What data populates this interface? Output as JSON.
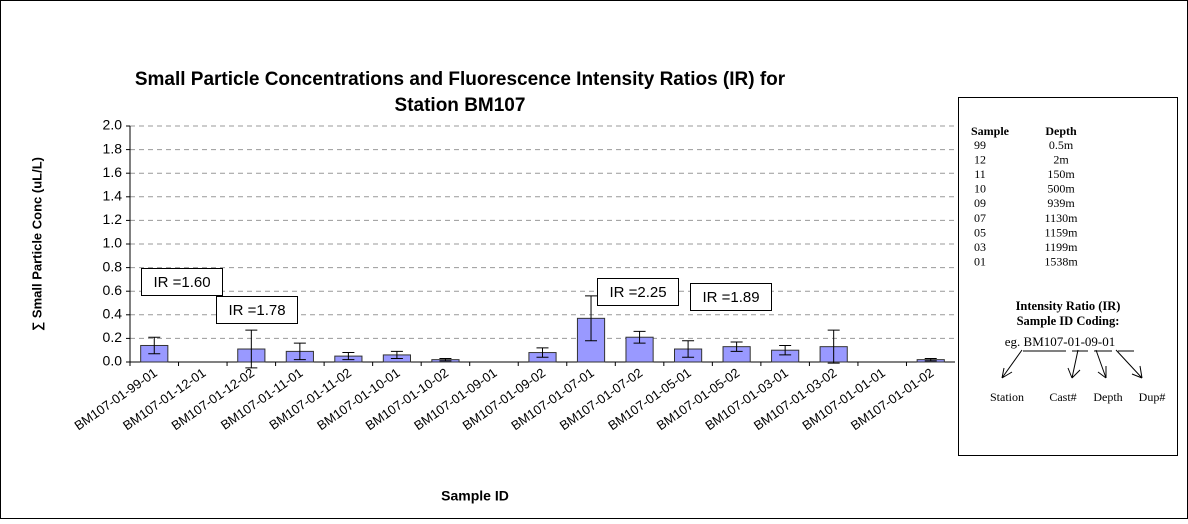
{
  "chart_data": {
    "type": "bar",
    "title": [
      "Small Particle Concentrations and Fluorescence Intensity Ratios (IR) for",
      "Station BM107"
    ],
    "xlabel": "Sample ID",
    "ylabel": "∑ Small Particle Conc  (uL/L)",
    "categories": [
      "BM107-01-99-01",
      "BM107-01-12-01",
      "BM107-01-12-02",
      "BM107-01-11-01",
      "BM107-01-11-02",
      "BM107-01-10-01",
      "BM107-01-10-02",
      "BM107-01-09-01",
      "BM107-01-09-02",
      "BM107-01-07-01",
      "BM107-01-07-02",
      "BM107-01-05-01",
      "BM107-01-05-02",
      "BM107-01-03-01",
      "BM107-01-03-02",
      "BM107-01-01-01",
      "BM107-01-01-02"
    ],
    "values": [
      0.14,
      0,
      0.11,
      0.09,
      0.05,
      0.06,
      0.02,
      0,
      0.08,
      0.37,
      0.21,
      0.11,
      0.13,
      0.1,
      0.13,
      0,
      0.02
    ],
    "errors": [
      0.07,
      0,
      0.16,
      0.07,
      0.03,
      0.03,
      0.01,
      0,
      0.04,
      0.19,
      0.05,
      0.07,
      0.04,
      0.04,
      0.14,
      0,
      0.01
    ],
    "color": "#9999ff",
    "ylim": [
      0,
      2
    ],
    "yticks": [
      {
        "value": 0,
        "label": "0.0"
      },
      {
        "value": 0.2,
        "label": "0.2"
      },
      {
        "value": 0.4,
        "label": "0.4"
      },
      {
        "value": 0.6,
        "label": "0.6"
      },
      {
        "value": 0.8,
        "label": "0.8"
      },
      {
        "value": 1,
        "label": "1.0"
      },
      {
        "value": 1.2,
        "label": "1.2"
      },
      {
        "value": 1.4,
        "label": "1.4"
      },
      {
        "value": 1.6,
        "label": "1.6"
      },
      {
        "value": 1.8,
        "label": "1.8"
      },
      {
        "value": 2,
        "label": "2.0"
      }
    ],
    "grid": true,
    "annotations": [
      "IR =1.60",
      "IR =1.78",
      "IR =2.25",
      "IR =1.89"
    ],
    "key": {
      "headers": [
        "Sample",
        "Depth"
      ],
      "rows": [
        [
          "99",
          "0.5m"
        ],
        [
          "12",
          "2m"
        ],
        [
          "11",
          "150m"
        ],
        [
          "10",
          "500m"
        ],
        [
          "09",
          "939m"
        ],
        [
          "07",
          "1130m"
        ],
        [
          "05",
          "1159m"
        ],
        [
          "03",
          "1199m"
        ],
        [
          "01",
          "1538m"
        ]
      ],
      "coding_title": [
        "Intensity Ratio (IR)",
        "Sample ID Coding:"
      ],
      "example": "eg. BM107-01-09-01",
      "parts": [
        "Station",
        "Cast#",
        "Depth",
        "Dup#"
      ]
    }
  }
}
